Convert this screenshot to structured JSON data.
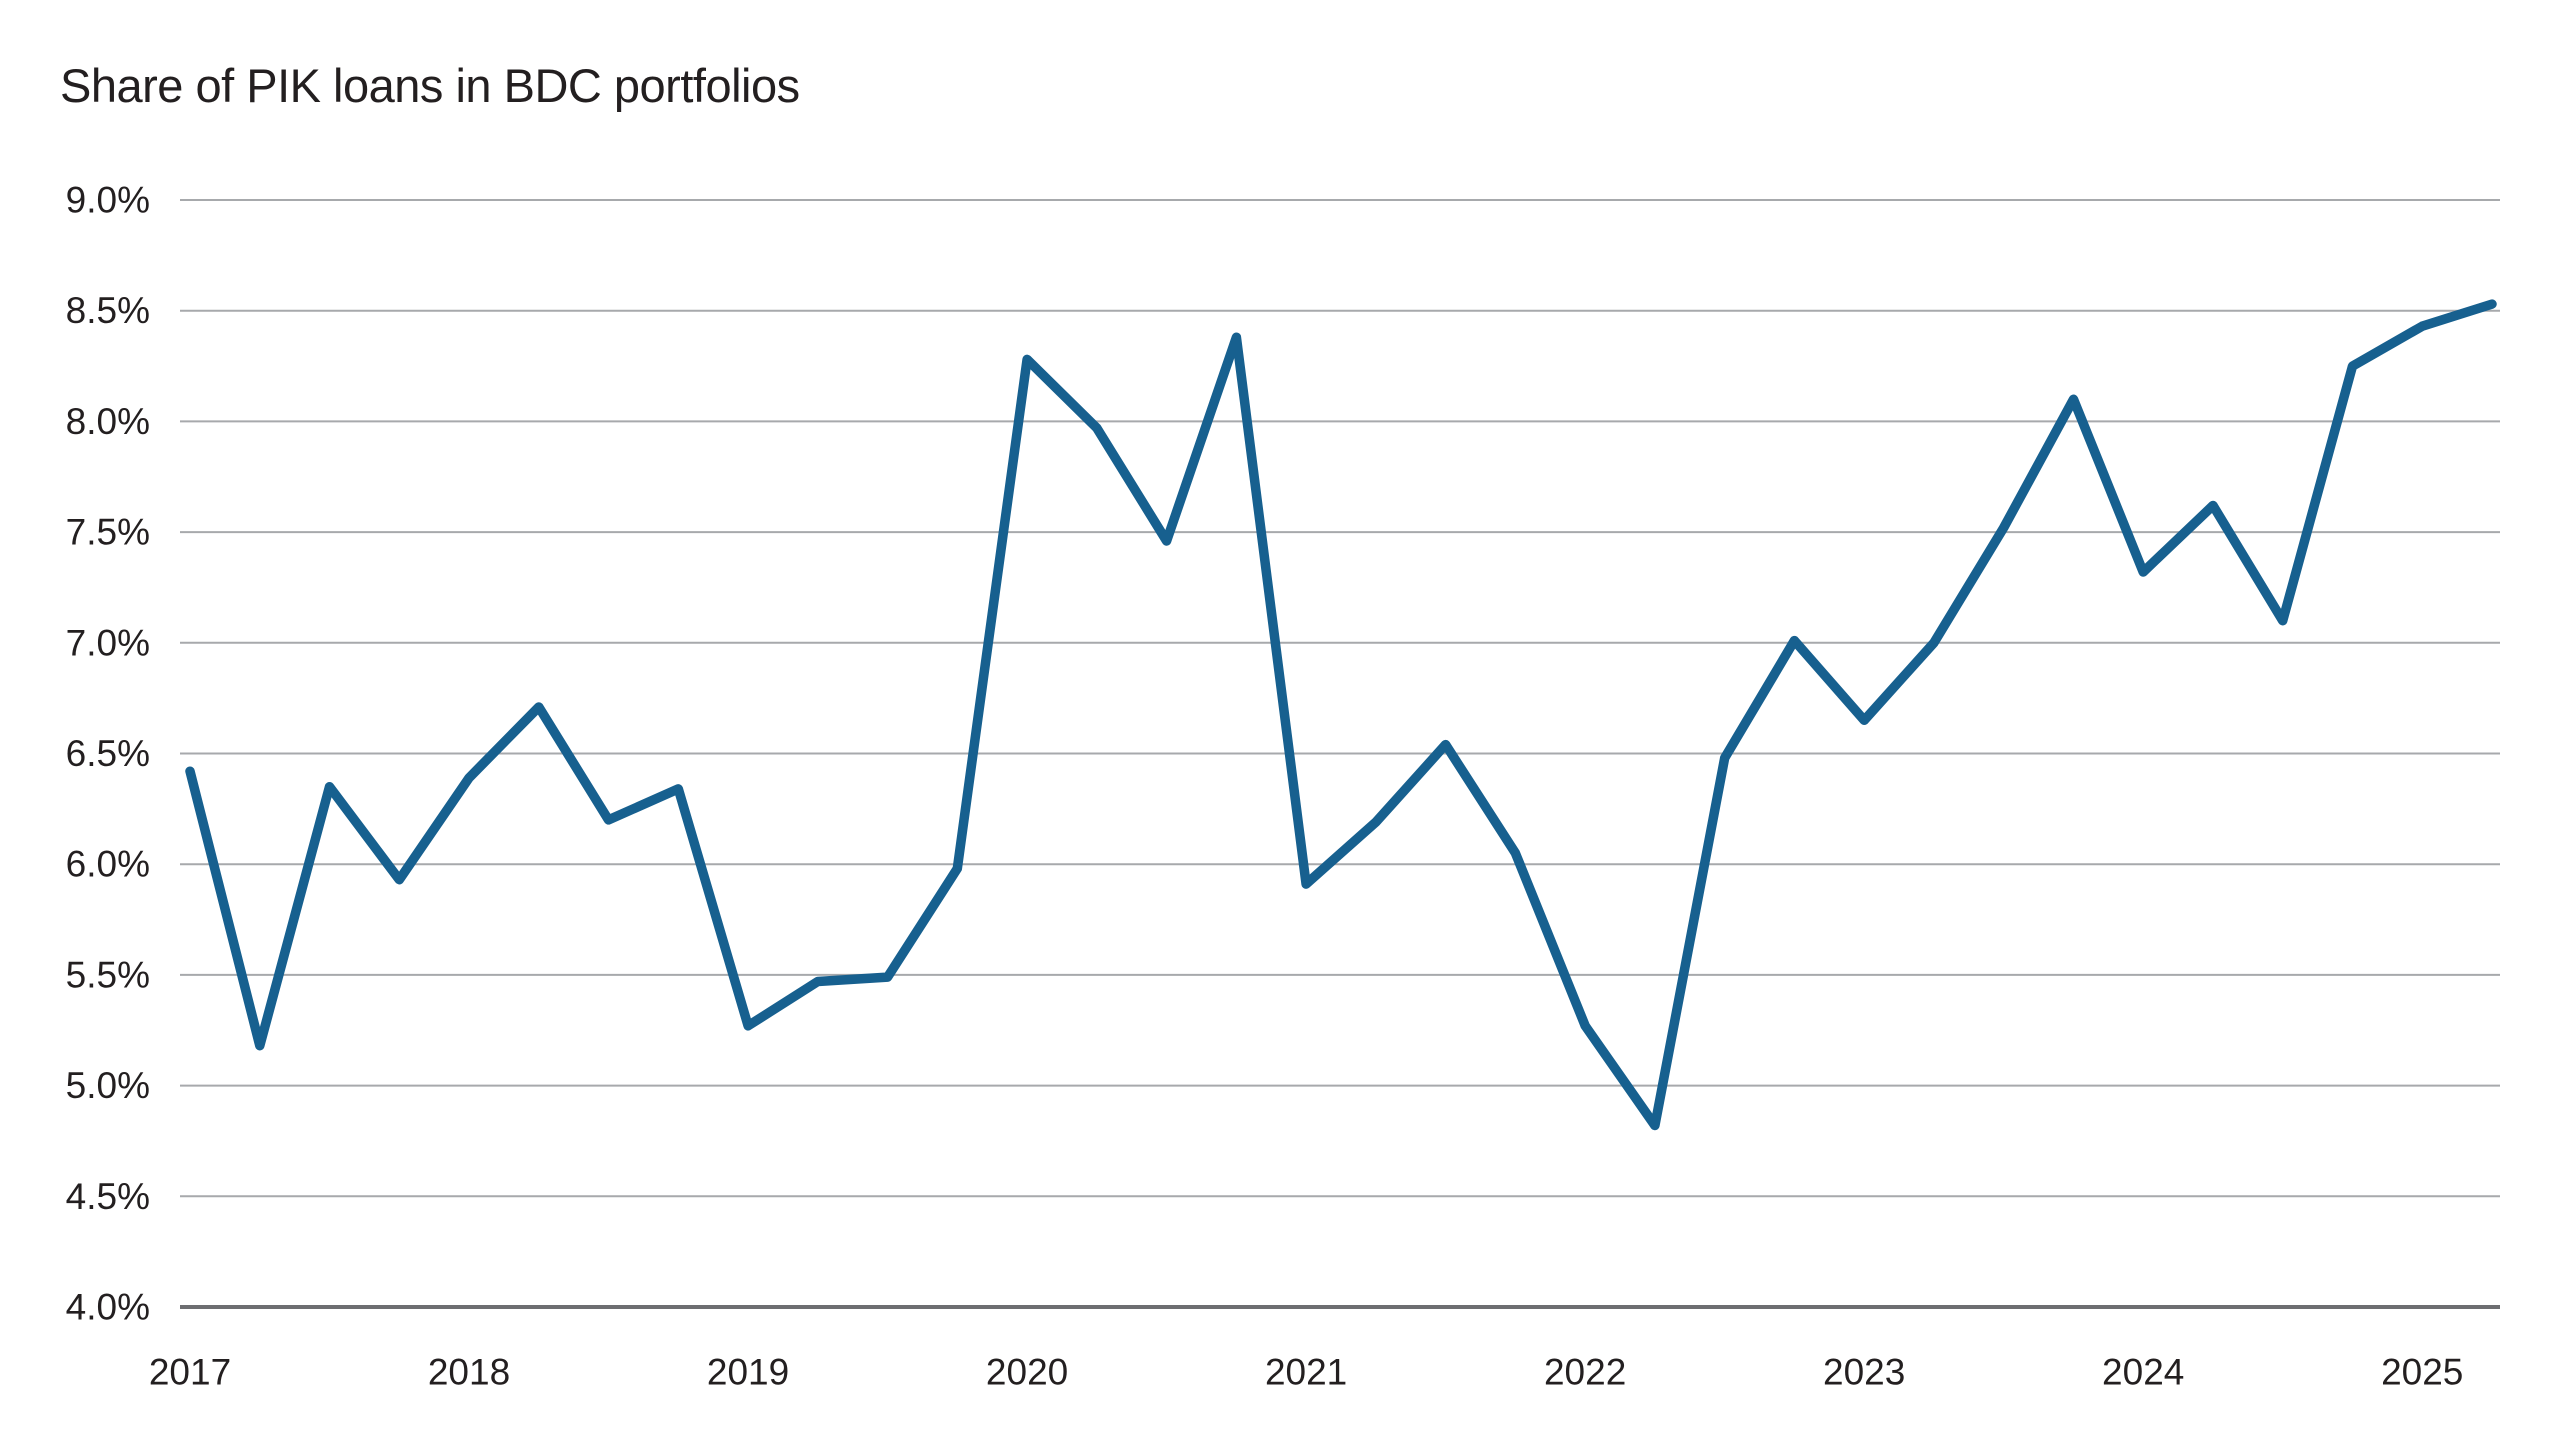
{
  "page": {
    "background": "#ffffff"
  },
  "chart_data": {
    "type": "line",
    "title": "Share of PIK loans in BDC portfolios",
    "x_quarters": [
      "2017Q1",
      "2017Q2",
      "2017Q3",
      "2017Q4",
      "2018Q1",
      "2018Q2",
      "2018Q3",
      "2018Q4",
      "2019Q1",
      "2019Q2",
      "2019Q3",
      "2019Q4",
      "2020Q1",
      "2020Q2",
      "2020Q3",
      "2020Q4",
      "2021Q1",
      "2021Q2",
      "2021Q3",
      "2021Q4",
      "2022Q1",
      "2022Q2",
      "2022Q3",
      "2022Q4",
      "2023Q1",
      "2023Q2",
      "2023Q3",
      "2023Q4",
      "2024Q1",
      "2024Q2",
      "2024Q3",
      "2024Q4",
      "2025Q1",
      "2025Q2"
    ],
    "values": [
      6.42,
      5.18,
      6.35,
      5.93,
      6.39,
      6.71,
      6.2,
      6.34,
      5.27,
      5.47,
      5.49,
      5.98,
      8.28,
      7.97,
      7.46,
      8.38,
      5.91,
      6.19,
      6.54,
      6.05,
      5.27,
      4.82,
      6.48,
      7.01,
      6.65,
      7.0,
      7.52,
      8.1,
      7.32,
      7.62,
      7.1,
      8.25,
      8.43,
      8.53
    ],
    "year_tick_labels": [
      "2017",
      "2018",
      "2019",
      "2020",
      "2021",
      "2022",
      "2023",
      "2024",
      "2025"
    ],
    "ytick_labels": [
      "9.0%",
      "8.5%",
      "8.0%",
      "7.5%",
      "7.0%",
      "6.5%",
      "6.0%",
      "5.5%",
      "5.0%",
      "4.5%",
      "4.0%"
    ],
    "ylim": [
      4.0,
      9.0
    ],
    "ytick_step": 0.5,
    "grid": true,
    "legend": "none",
    "line_color": "#17608f",
    "grid_color": "#a7a9ac",
    "axis_color": "#6d6e71",
    "text_color": "#231f20"
  }
}
